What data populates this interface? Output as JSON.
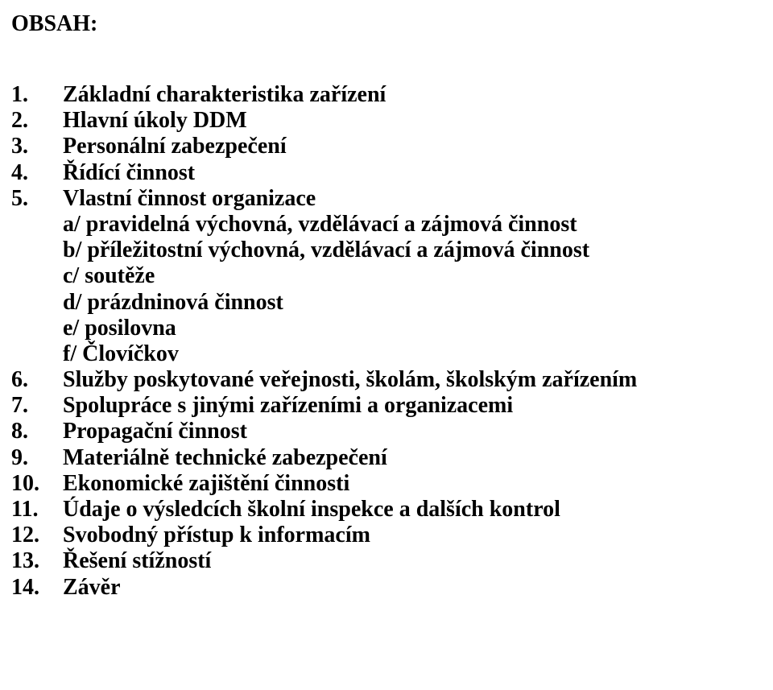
{
  "title": "OBSAH:",
  "items": [
    {
      "num": "1.",
      "text": "Základní charakteristika zařízení"
    },
    {
      "num": "2.",
      "text": "Hlavní úkoly DDM"
    },
    {
      "num": "3.",
      "text": "Personální zabezpečení"
    },
    {
      "num": "4.",
      "text": "Řídící činnost"
    },
    {
      "num": "5.",
      "text": "Vlastní činnost organizace",
      "sub": [
        "a/ pravidelná výchovná, vzdělávací a zájmová činnost",
        "b/ příležitostní výchovná, vzdělávací a zájmová činnost",
        "c/ soutěže",
        "d/ prázdninová činnost",
        "e/ posilovna",
        "f/ Človíčkov"
      ]
    },
    {
      "num": "6.",
      "text": "Služby poskytované veřejnosti, školám, školským zařízením"
    },
    {
      "num": "7.",
      "text": "Spolupráce s jinými zařízeními a organizacemi"
    },
    {
      "num": "8.",
      "text": "Propagační činnost"
    },
    {
      "num": "9.",
      "text": "Materiálně technické zabezpečení"
    },
    {
      "num": "10.",
      "text": "Ekonomické zajištění činnosti"
    },
    {
      "num": "11.",
      "text": "Údaje o výsledcích školní inspekce a dalších kontrol"
    },
    {
      "num": "12.",
      "text": "Svobodný přístup k informacím"
    },
    {
      "num": "13.",
      "text": "Řešení stížností"
    },
    {
      "num": "14.",
      "text": "Závěr"
    }
  ]
}
